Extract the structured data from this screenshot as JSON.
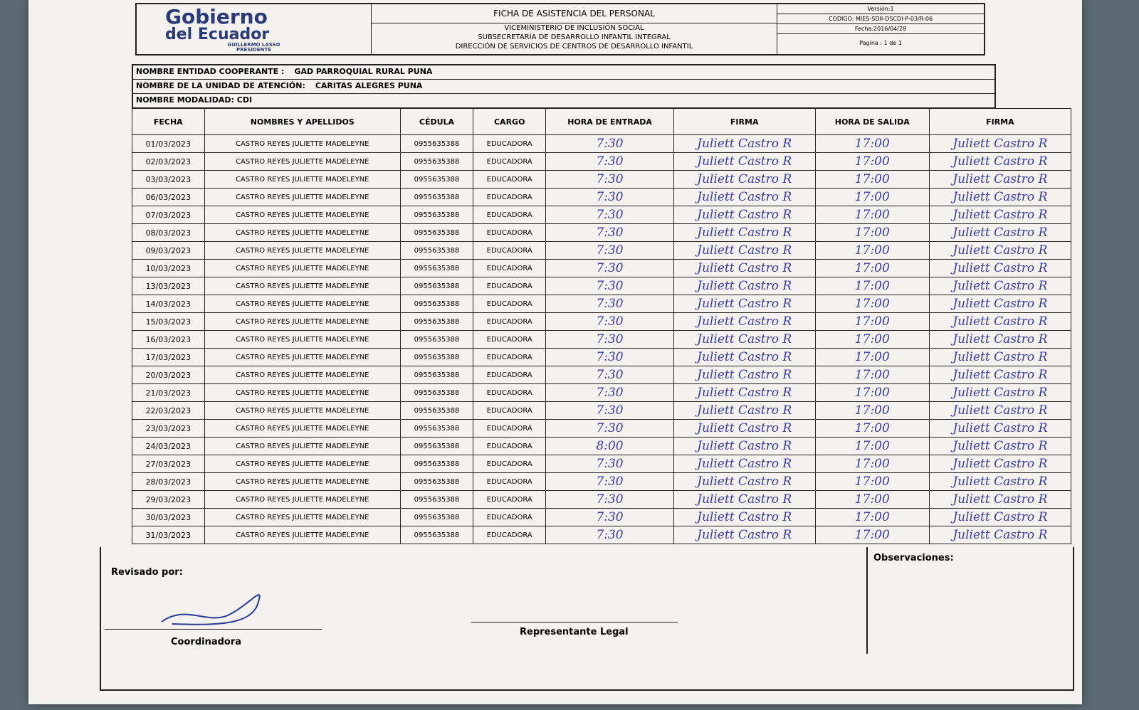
{
  "header": {
    "logo": {
      "line1": "Gobierno",
      "line2": "del Ecuador",
      "line3": "GUILLERMO LASSO",
      "line4": "PRESIDENTE"
    },
    "title": "FICHA DE ASISTENCIA DEL PERSONAL",
    "subtitles": [
      "VICEMINISTERIO DE INCLUSIÓN SOCIAL",
      "SUBSECRETARÍA DE DESARROLLO INFANTIL INTEGRAL",
      "DIRECCIÓN DE SERVICIOS DE CENTROS DE DESARROLLO INFANTIL"
    ],
    "version": "Versión:1",
    "code": "CODIGO: MIES-SDII-DSCDI-P-03/R-06",
    "date": "Fecha:2016/04/28",
    "page": "Pagina : 1 de 1"
  },
  "info": {
    "entity_label": "NOMBRE ENTIDAD COOPERANTE :",
    "entity": "GAD PARROQUIAL RURAL PUNA",
    "unit_label": "NOMBRE DE LA UNIDAD DE ATENCIÓN:",
    "unit": "CARITAS ALEGRES PUNA",
    "modality": "NOMBRE MODALIDAD: CDI"
  },
  "table": {
    "columns": [
      "FECHA",
      "NOMBRES Y APELLIDOS",
      "CÉDULA",
      "CARGO",
      "HORA DE ENTRADA",
      "FIRMA",
      "HORA DE SALIDA",
      "FIRMA"
    ],
    "rows": [
      [
        "01/03/2023",
        "CASTRO REYES JULIETTE MADELEYNE",
        "0955635388",
        "EDUCADORA",
        "7:30",
        "Juliett Castro R",
        "17:00",
        "Juliett Castro R"
      ],
      [
        "02/03/2023",
        "CASTRO REYES JULIETTE MADELEYNE",
        "0955635388",
        "EDUCADORA",
        "7:30",
        "Juliett Castro R",
        "17:00",
        "Juliett Castro R"
      ],
      [
        "03/03/2023",
        "CASTRO REYES JULIETTE MADELEYNE",
        "0955635388",
        "EDUCADORA",
        "7:30",
        "Juliett Castro R",
        "17:00",
        "Juliett Castro R"
      ],
      [
        "06/03/2023",
        "CASTRO REYES JULIETTE MADELEYNE",
        "0955635388",
        "EDUCADORA",
        "7:30",
        "Juliett Castro R",
        "17:00",
        "Juliett Castro R"
      ],
      [
        "07/03/2023",
        "CASTRO REYES JULIETTE MADELEYNE",
        "0955635388",
        "EDUCADORA",
        "7:30",
        "Juliett Castro R",
        "17:00",
        "Juliett Castro R"
      ],
      [
        "08/03/2023",
        "CASTRO REYES JULIETTE MADELEYNE",
        "0955635388",
        "EDUCADORA",
        "7:30",
        "Juliett Castro R",
        "17:00",
        "Juliett Castro R"
      ],
      [
        "09/03/2023",
        "CASTRO REYES JULIETTE MADELEYNE",
        "0955635388",
        "EDUCADORA",
        "7:30",
        "Juliett Castro R",
        "17:00",
        "Juliett Castro R"
      ],
      [
        "10/03/2023",
        "CASTRO REYES JULIETTE MADELEYNE",
        "0955635388",
        "EDUCADORA",
        "7:30",
        "Juliett Castro R",
        "17:00",
        "Juliett Castro R"
      ],
      [
        "13/03/2023",
        "CASTRO REYES JULIETTE MADELEYNE",
        "0955635388",
        "EDUCADORA",
        "7:30",
        "Juliett Castro R",
        "17:00",
        "Juliett Castro R"
      ],
      [
        "14/03/2023",
        "CASTRO REYES JULIETTE MADELEYNE",
        "0955635388",
        "EDUCADORA",
        "7:30",
        "Juliett Castro R",
        "17:00",
        "Juliett Castro R"
      ],
      [
        "15/03/2023",
        "CASTRO REYES JULIETTE MADELEYNE",
        "0955635388",
        "EDUCADORA",
        "7:30",
        "Juliett Castro R",
        "17:00",
        "Juliett Castro R"
      ],
      [
        "16/03/2023",
        "CASTRO REYES JULIETTE MADELEYNE",
        "0955635388",
        "EDUCADORA",
        "7:30",
        "Juliett Castro R",
        "17:00",
        "Juliett Castro R"
      ],
      [
        "17/03/2023",
        "CASTRO REYES JULIETTE MADELEYNE",
        "0955635388",
        "EDUCADORA",
        "7:30",
        "Juliett Castro R",
        "17:00",
        "Juliett Castro R"
      ],
      [
        "20/03/2023",
        "CASTRO REYES JULIETTE MADELEYNE",
        "0955635388",
        "EDUCADORA",
        "7:30",
        "Juliett Castro R",
        "17:00",
        "Juliett Castro R"
      ],
      [
        "21/03/2023",
        "CASTRO REYES JULIETTE MADELEYNE",
        "0955635388",
        "EDUCADORA",
        "7:30",
        "Juliett Castro R",
        "17:00",
        "Juliett Castro R"
      ],
      [
        "22/03/2023",
        "CASTRO REYES JULIETTE MADELEYNE",
        "0955635388",
        "EDUCADORA",
        "7:30",
        "Juliett Castro R",
        "17:00",
        "Juliett Castro R"
      ],
      [
        "23/03/2023",
        "CASTRO REYES JULIETTE MADELEYNE",
        "0955635388",
        "EDUCADORA",
        "7:30",
        "Juliett Castro R",
        "17:00",
        "Juliett Castro R"
      ],
      [
        "24/03/2023",
        "CASTRO REYES JULIETTE MADELEYNE",
        "0955635388",
        "EDUCADORA",
        "8:00",
        "Juliett Castro R",
        "17:00",
        "Juliett Castro R"
      ],
      [
        "27/03/2023",
        "CASTRO REYES JULIETTE MADELEYNE",
        "0955635388",
        "EDUCADORA",
        "7:30",
        "Juliett Castro R",
        "17:00",
        "Juliett Castro R"
      ],
      [
        "28/03/2023",
        "CASTRO REYES JULIETTE MADELEYNE",
        "0955635388",
        "EDUCADORA",
        "7:30",
        "Juliett Castro R",
        "17:00",
        "Juliett Castro R"
      ],
      [
        "29/03/2023",
        "CASTRO REYES JULIETTE MADELEYNE",
        "0955635388",
        "EDUCADORA",
        "7:30",
        "Juliett Castro R",
        "17:00",
        "Juliett Castro R"
      ],
      [
        "30/03/2023",
        "CASTRO REYES JULIETTE MADELEYNE",
        "0955635388",
        "EDUCADORA",
        "7:30",
        "Juliett Castro R",
        "17:00",
        "Juliett Castro R"
      ],
      [
        "31/03/2023",
        "CASTRO REYES JULIETTE MADELEYNE",
        "0955635388",
        "EDUCADORA",
        "7:30",
        "Juliett Castro R",
        "17:00",
        "Juliett Castro R"
      ]
    ]
  },
  "footer": {
    "reviewed": "Revisado por:",
    "coordinator": "Coordinadora",
    "legal": "Representante Legal",
    "observations": "Observaciones:"
  }
}
